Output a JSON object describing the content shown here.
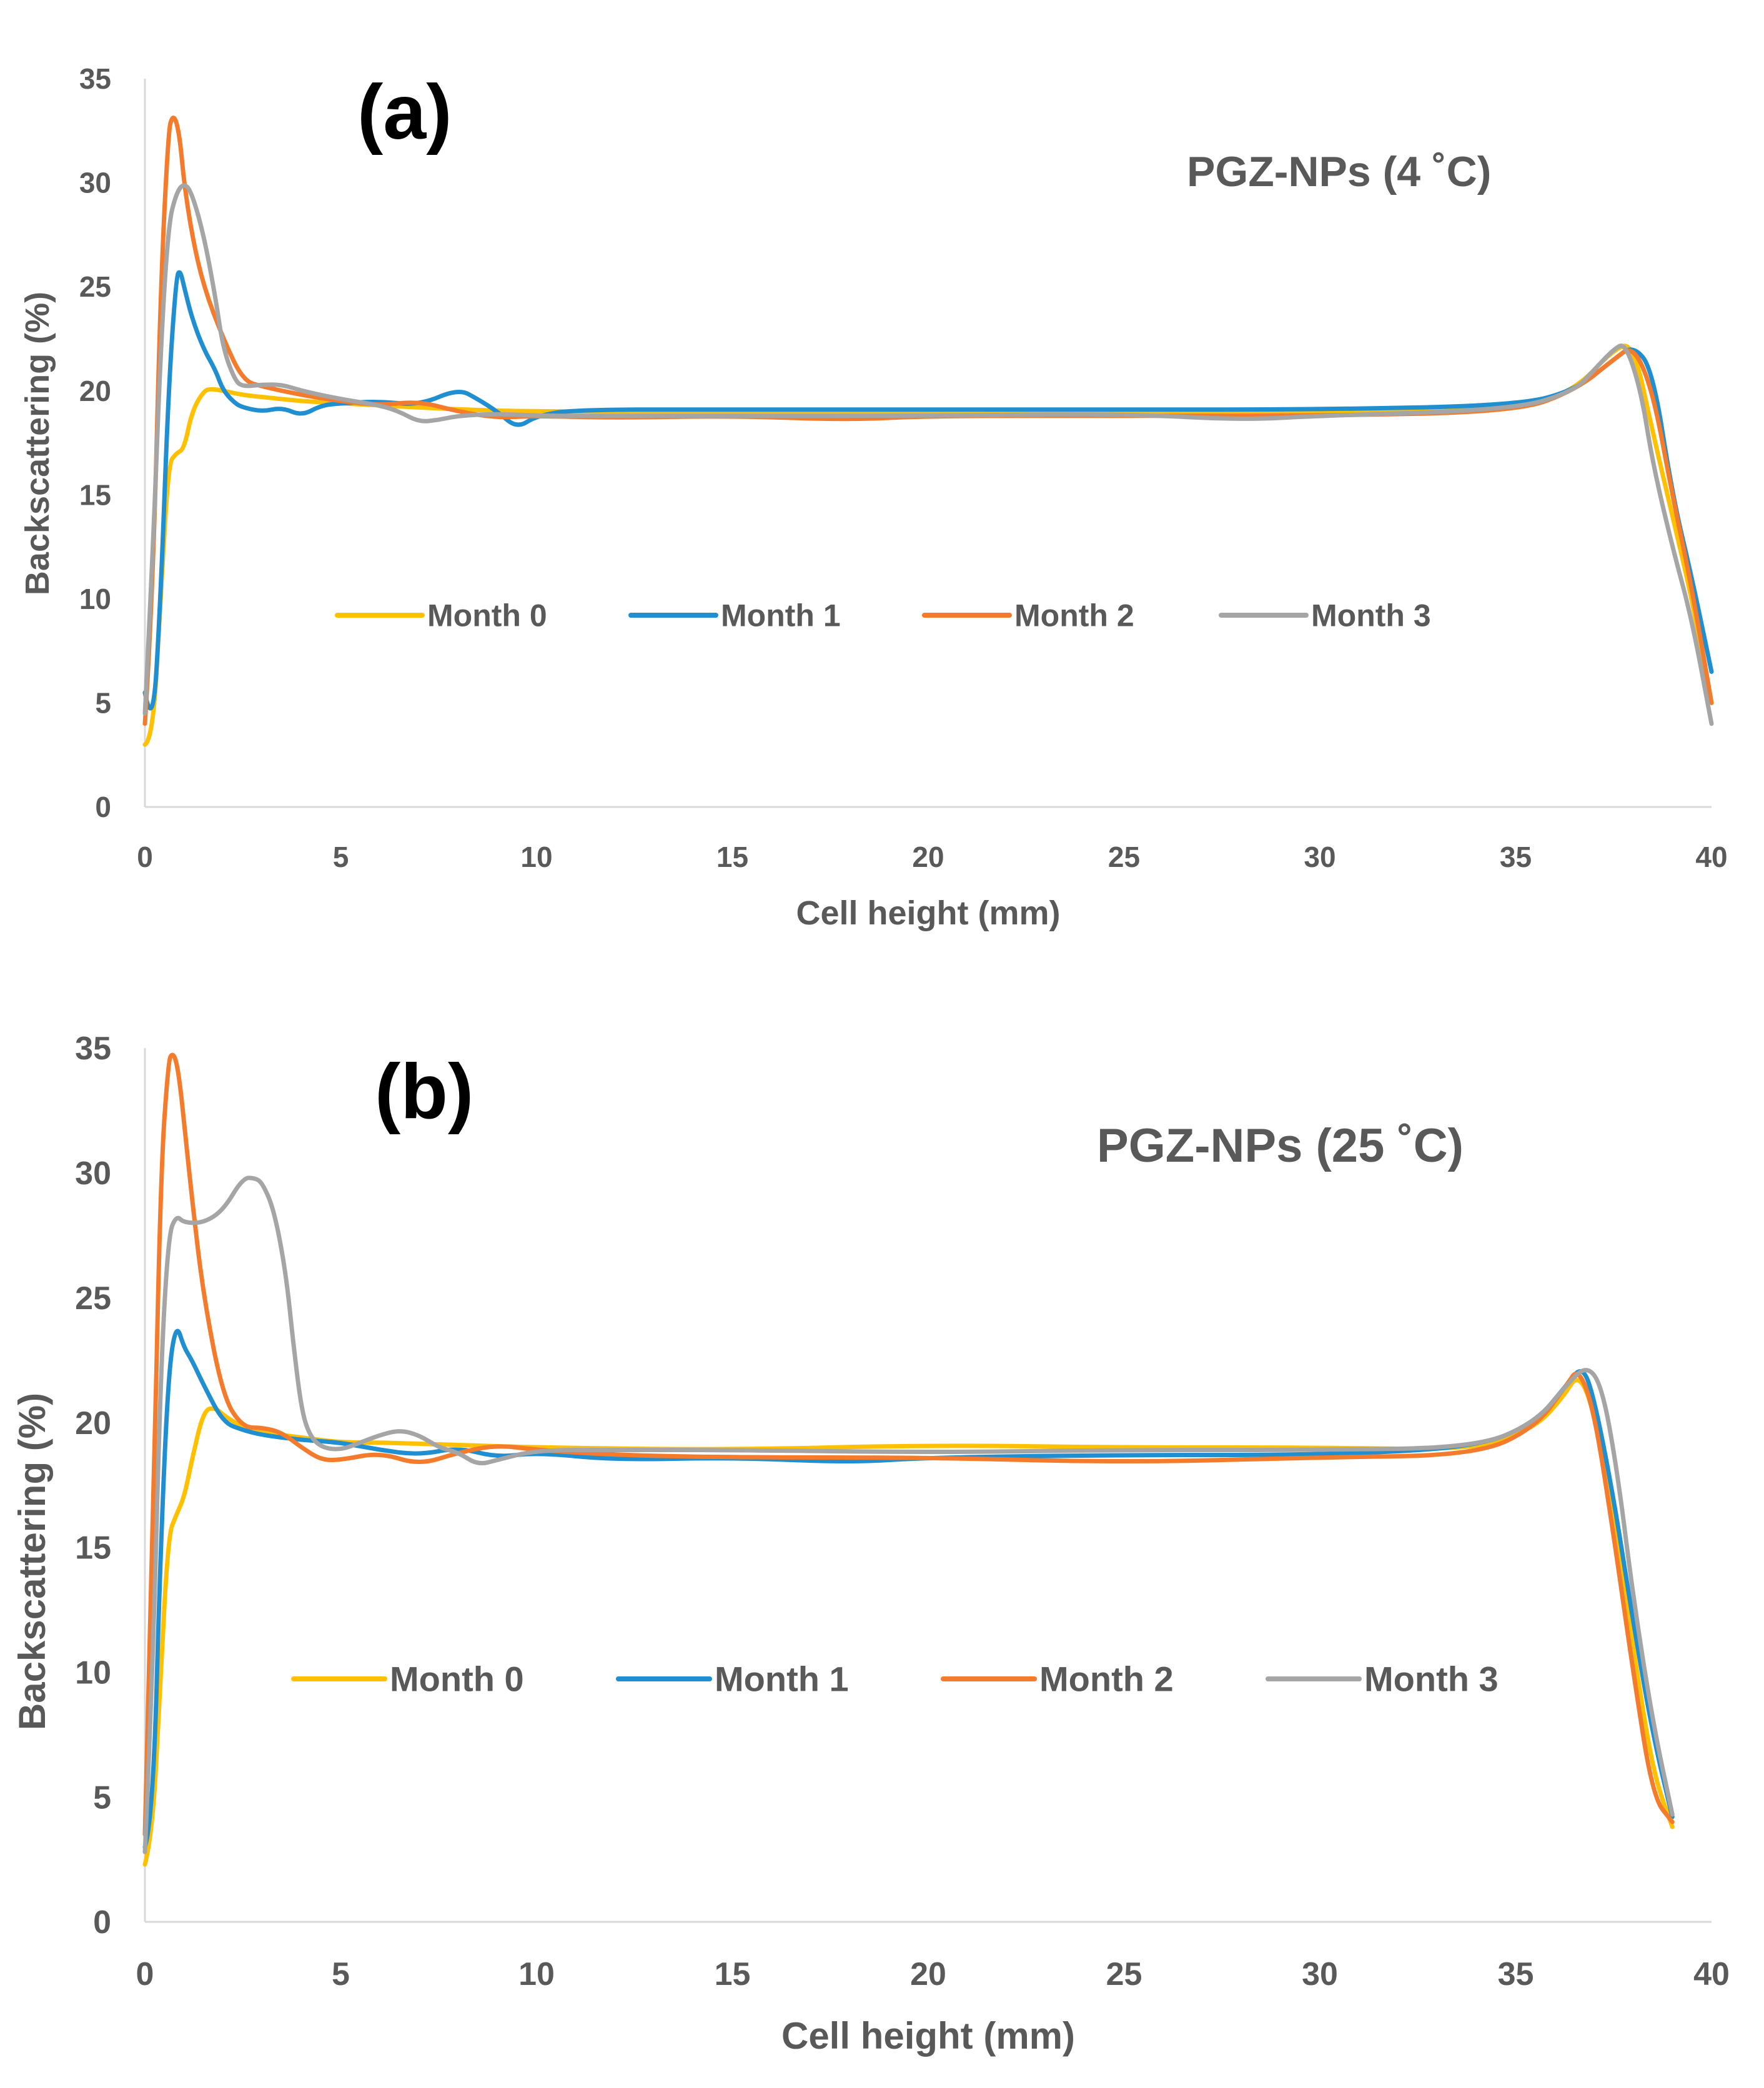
{
  "chart_data": [
    {
      "type": "line",
      "panel_label": "(a)",
      "title": "PGZ-NPs (4 ˚C)",
      "xlabel": "Cell height (mm)",
      "ylabel": "Backscattering (%)",
      "xlim": [
        0,
        40
      ],
      "ylim": [
        0,
        35
      ],
      "xticks": [
        "0",
        "5",
        "10",
        "15",
        "20",
        "25",
        "30",
        "35",
        "40"
      ],
      "yticks": [
        "0",
        "5",
        "10",
        "15",
        "20",
        "25",
        "30",
        "35"
      ],
      "legend_position": "center",
      "series": [
        {
          "name": "Month 0",
          "color": "#FFC000",
          "x": [
            0,
            0.2,
            0.4,
            0.6,
            0.8,
            1.0,
            1.2,
            1.5,
            1.7,
            2.0,
            2.5,
            3.0,
            4.0,
            5.0,
            6.0,
            8.0,
            10.0,
            15.0,
            20.0,
            25.0,
            30.0,
            35.0,
            36.5,
            37.5,
            38.0,
            38.5,
            39.0,
            39.5,
            40.0
          ],
          "y": [
            3.0,
            3.2,
            10.0,
            16.5,
            17.0,
            17.2,
            19.0,
            20.0,
            20.1,
            20.0,
            19.8,
            19.7,
            19.5,
            19.4,
            19.3,
            19.1,
            19.0,
            19.0,
            18.9,
            19.0,
            19.0,
            19.1,
            20.0,
            22.0,
            22.3,
            18.0,
            14.0,
            10.0,
            5.0
          ]
        },
        {
          "name": "Month 1",
          "color": "#1F8FD1",
          "x": [
            0,
            0.2,
            0.4,
            0.6,
            0.8,
            0.9,
            1.0,
            1.2,
            1.5,
            1.8,
            2.0,
            2.3,
            2.5,
            3.0,
            3.5,
            4.0,
            4.5,
            5.0,
            6.0,
            7.0,
            8.0,
            8.5,
            9.0,
            9.5,
            10.0,
            11.0,
            15.0,
            20.0,
            25.0,
            30.0,
            35.0,
            36.5,
            37.5,
            38.0,
            38.5,
            39.0,
            39.5,
            40.0
          ],
          "y": [
            5.5,
            3.5,
            10.0,
            20.0,
            25.5,
            25.8,
            25.0,
            23.5,
            22.0,
            21.0,
            20.0,
            19.4,
            19.2,
            19.0,
            19.2,
            18.8,
            19.3,
            19.4,
            19.5,
            19.3,
            20.1,
            19.6,
            19.0,
            18.2,
            18.8,
            19.1,
            19.1,
            19.1,
            19.1,
            19.1,
            19.3,
            20.0,
            21.5,
            22.2,
            21.0,
            15.0,
            11.0,
            6.5
          ]
        },
        {
          "name": "Month 2",
          "color": "#F47B2C",
          "x": [
            0,
            0.2,
            0.4,
            0.6,
            0.7,
            0.8,
            0.9,
            1.0,
            1.2,
            1.5,
            2.0,
            2.5,
            3.0,
            4.0,
            5.0,
            6.0,
            7.0,
            8.0,
            9.0,
            10.0,
            12.0,
            15.0,
            18.0,
            20.0,
            25.0,
            30.0,
            35.0,
            36.5,
            37.5,
            38.0,
            38.5,
            39.0,
            39.5,
            40.0
          ],
          "y": [
            4.0,
            10.0,
            25.0,
            32.5,
            33.2,
            33.0,
            32.0,
            30.0,
            27.5,
            25.0,
            22.5,
            20.5,
            20.2,
            19.8,
            19.5,
            19.3,
            19.5,
            19.0,
            18.7,
            18.8,
            18.7,
            18.8,
            18.6,
            18.8,
            18.8,
            18.8,
            19.0,
            20.0,
            21.5,
            22.2,
            20.0,
            15.0,
            10.5,
            5.0
          ]
        },
        {
          "name": "Month 3",
          "color": "#A5A5A5",
          "x": [
            0,
            0.2,
            0.4,
            0.6,
            0.8,
            1.0,
            1.2,
            1.5,
            1.8,
            2.0,
            2.3,
            2.5,
            3.0,
            3.5,
            4.0,
            5.0,
            6.0,
            6.5,
            7.0,
            7.5,
            8.0,
            9.0,
            10.0,
            12.0,
            15.0,
            20.0,
            25.0,
            28.0,
            30.0,
            35.0,
            36.5,
            37.0,
            37.5,
            37.8,
            38.2,
            38.5,
            39.0,
            39.5,
            40.0
          ],
          "y": [
            4.5,
            12.0,
            22.0,
            28.0,
            29.5,
            30.0,
            29.5,
            27.5,
            24.5,
            22.0,
            20.5,
            20.2,
            20.3,
            20.3,
            20.0,
            19.6,
            19.3,
            19.0,
            18.5,
            18.6,
            18.8,
            18.9,
            18.8,
            18.8,
            18.8,
            18.8,
            18.9,
            18.6,
            18.8,
            19.1,
            20.0,
            21.0,
            22.0,
            22.3,
            20.0,
            16.5,
            12.5,
            9.0,
            4.0
          ]
        }
      ]
    },
    {
      "type": "line",
      "panel_label": "(b)",
      "title": "PGZ-NPs (25 ˚C)",
      "xlabel": "Cell height (mm)",
      "ylabel": "Backscattering (%)",
      "xlim": [
        0,
        40
      ],
      "ylim": [
        0,
        35
      ],
      "xticks": [
        "0",
        "5",
        "10",
        "15",
        "20",
        "25",
        "30",
        "35",
        "40"
      ],
      "yticks": [
        "0",
        "5",
        "10",
        "15",
        "20",
        "25",
        "30",
        "35"
      ],
      "legend_position": "center",
      "series": [
        {
          "name": "Month 0",
          "color": "#FFC000",
          "x": [
            0,
            0.2,
            0.4,
            0.6,
            0.8,
            1.0,
            1.2,
            1.5,
            1.8,
            2.0,
            2.5,
            3.0,
            4.0,
            5.0,
            6.0,
            8.0,
            10.0,
            15.0,
            20.0,
            25.0,
            30.0,
            34.0,
            35.5,
            36.2,
            36.6,
            37.0,
            37.5,
            38.0,
            38.5,
            39.0
          ],
          "y": [
            2.3,
            3.5,
            10.0,
            15.5,
            16.3,
            17.0,
            18.5,
            20.5,
            20.6,
            20.3,
            19.8,
            19.6,
            19.4,
            19.2,
            19.2,
            19.1,
            19.0,
            18.9,
            19.1,
            19.0,
            19.0,
            18.9,
            19.8,
            21.0,
            22.0,
            20.5,
            16.0,
            11.0,
            6.0,
            3.8
          ]
        },
        {
          "name": "Month 1",
          "color": "#1F8FD1",
          "x": [
            0,
            0.2,
            0.4,
            0.6,
            0.8,
            1.0,
            1.2,
            1.5,
            2.0,
            2.5,
            3.0,
            4.0,
            5.0,
            6.0,
            7.0,
            8.0,
            9.0,
            10.0,
            12.0,
            15.0,
            18.0,
            20.0,
            25.0,
            30.0,
            34.0,
            35.5,
            36.3,
            36.7,
            37.0,
            37.5,
            38.0,
            38.5,
            39.0
          ],
          "y": [
            3.0,
            4.0,
            15.0,
            22.0,
            24.0,
            23.0,
            22.5,
            21.5,
            20.0,
            19.7,
            19.5,
            19.3,
            19.2,
            18.9,
            18.7,
            19.0,
            18.6,
            18.8,
            18.5,
            18.6,
            18.4,
            18.6,
            18.7,
            18.7,
            19.0,
            20.0,
            21.5,
            22.3,
            21.0,
            17.0,
            12.0,
            7.5,
            4.2
          ]
        },
        {
          "name": "Month 2",
          "color": "#F47B2C",
          "x": [
            0,
            0.2,
            0.4,
            0.6,
            0.7,
            0.8,
            0.9,
            1.0,
            1.2,
            1.5,
            2.0,
            2.5,
            3.0,
            3.5,
            4.0,
            4.5,
            5.0,
            6.0,
            7.0,
            8.0,
            9.0,
            10.0,
            12.0,
            15.0,
            20.0,
            25.0,
            30.0,
            34.0,
            35.5,
            36.3,
            36.6,
            37.0,
            37.5,
            38.0,
            38.5,
            39.0
          ],
          "y": [
            3.5,
            15.0,
            30.0,
            34.5,
            34.8,
            34.5,
            33.5,
            32.0,
            29.0,
            25.0,
            21.0,
            19.8,
            19.8,
            19.6,
            19.0,
            18.5,
            18.5,
            18.8,
            18.3,
            18.8,
            19.1,
            18.9,
            18.7,
            18.6,
            18.6,
            18.4,
            18.6,
            18.7,
            19.8,
            21.5,
            22.2,
            20.5,
            15.5,
            10.0,
            5.0,
            4.0
          ]
        },
        {
          "name": "Month 3",
          "color": "#A5A5A5",
          "x": [
            0,
            0.2,
            0.4,
            0.6,
            0.8,
            1.0,
            1.5,
            2.0,
            2.5,
            2.8,
            3.0,
            3.3,
            3.6,
            3.8,
            4.0,
            4.2,
            4.5,
            5.0,
            5.5,
            6.0,
            6.5,
            7.0,
            7.5,
            8.0,
            8.5,
            9.0,
            10.0,
            12.0,
            15.0,
            20.0,
            25.0,
            30.0,
            34.0,
            35.5,
            36.3,
            36.8,
            37.2,
            37.6,
            38.0,
            38.5,
            39.0
          ],
          "y": [
            2.8,
            10.0,
            22.0,
            27.5,
            28.3,
            28.0,
            28.0,
            28.5,
            29.8,
            29.8,
            29.6,
            28.5,
            26.0,
            23.0,
            20.5,
            19.5,
            19.0,
            18.9,
            19.2,
            19.5,
            19.7,
            19.5,
            19.0,
            18.8,
            18.3,
            18.5,
            18.9,
            18.9,
            18.9,
            18.8,
            18.9,
            18.9,
            19.0,
            20.0,
            21.5,
            22.3,
            21.5,
            18.0,
            13.0,
            8.0,
            4.3
          ]
        }
      ]
    }
  ]
}
